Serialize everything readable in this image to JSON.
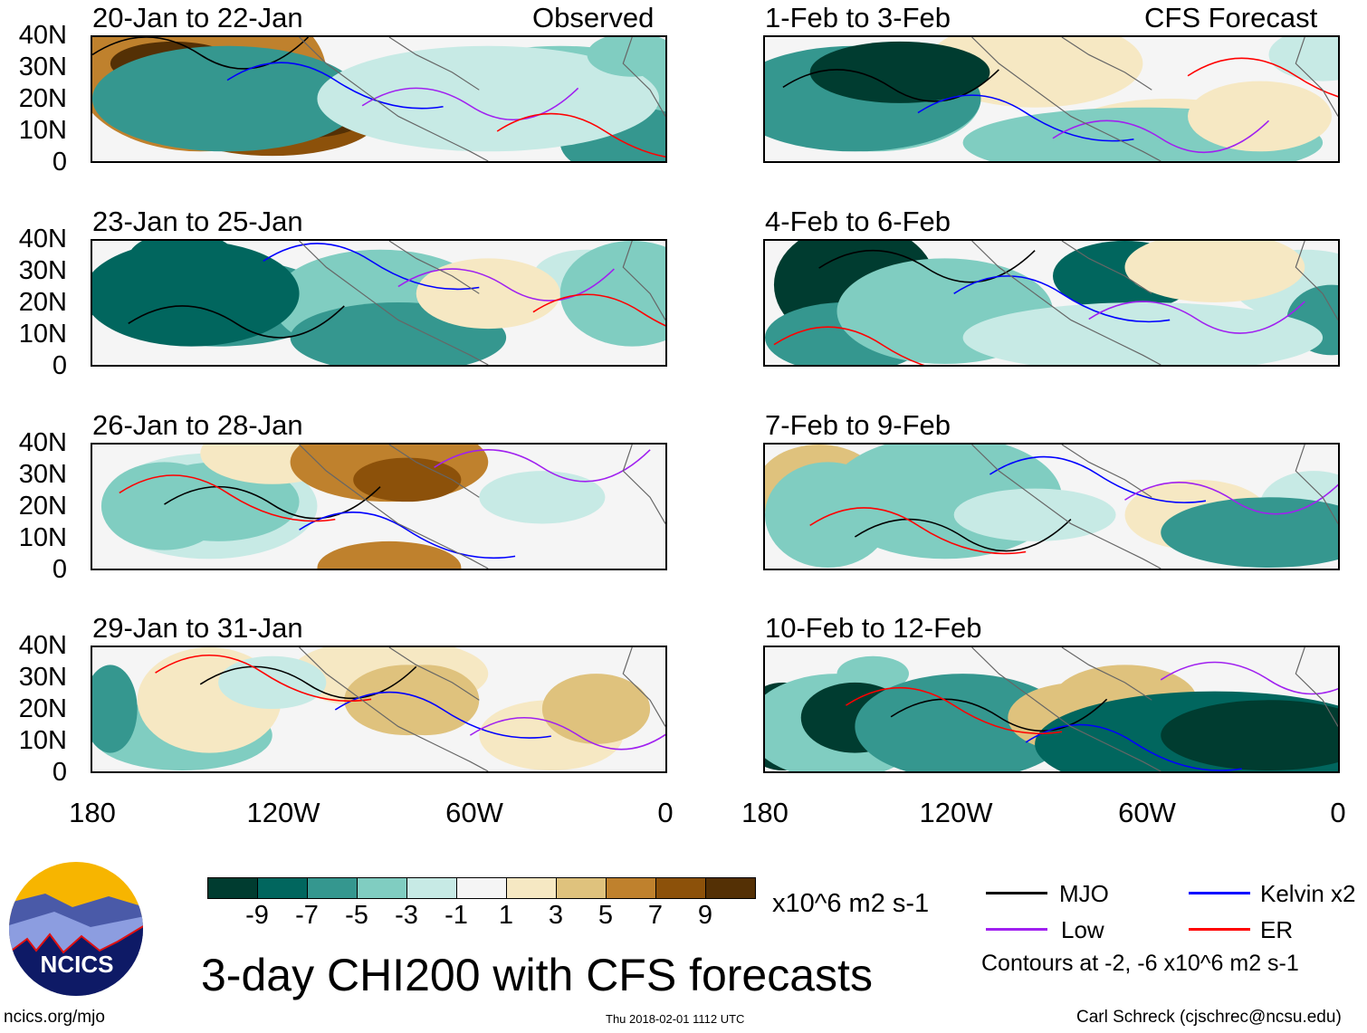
{
  "panels": {
    "observed_label": "Observed",
    "forecast_label": "CFS Forecast",
    "left": [
      "20-Jan to 22-Jan",
      "23-Jan to 25-Jan",
      "26-Jan to 28-Jan",
      "29-Jan to 31-Jan"
    ],
    "right": [
      "1-Feb to 3-Feb",
      "4-Feb to 6-Feb",
      "7-Feb to 9-Feb",
      "10-Feb to 12-Feb"
    ]
  },
  "lat_labels": [
    "40N",
    "30N",
    "20N",
    "10N",
    "0"
  ],
  "lon_labels": [
    "180",
    "120W",
    "60W",
    "0"
  ],
  "colorbar": {
    "colors": [
      "#003c30",
      "#01665e",
      "#35978f",
      "#80cdc1",
      "#c7eae5",
      "#f5f5f5",
      "#f6e8c3",
      "#dfc27d",
      "#bf812d",
      "#8c510a",
      "#543005"
    ],
    "labels": [
      "-9",
      "-7",
      "-5",
      "-3",
      "-1",
      "1",
      "3",
      "5",
      "7",
      "9"
    ],
    "units": "x10^6 m2 s-1"
  },
  "legend": {
    "items": [
      {
        "label": "MJO",
        "color": "#000000"
      },
      {
        "label": "Kelvin x2",
        "color": "#0000ff"
      },
      {
        "label": "Low",
        "color": "#a020f0"
      },
      {
        "label": "ER",
        "color": "#ff0000"
      }
    ],
    "contours": "Contours at -2, -6 x10^6 m2 s-1"
  },
  "title": "3-day CHI200 with CFS forecasts",
  "logo": "NCICS",
  "footer": {
    "url": "ncics.org/mjo",
    "timestamp": "Thu 2018-02-01 1112 UTC",
    "author": "Carl Schreck (cjschrec@ncsu.edu)"
  }
}
